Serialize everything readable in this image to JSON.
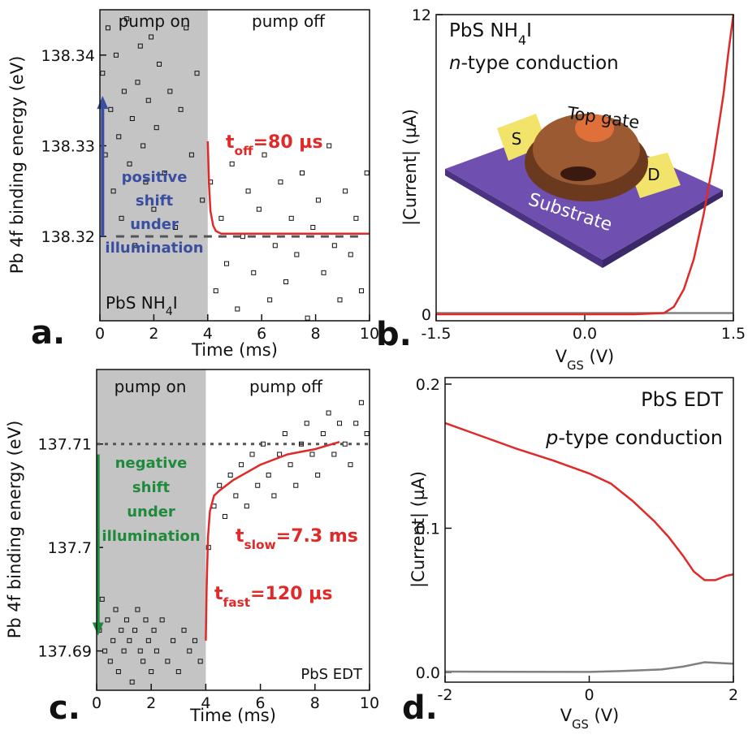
{
  "chart_data": [
    {
      "type": "scatter",
      "panel_label": "a.",
      "xlabel": [
        "Time (ms)"
      ],
      "ylabel": [
        "Pb 4f binding energy (eV)"
      ],
      "xlim": [
        0,
        10
      ],
      "ylim": [
        138.3107,
        138.345
      ],
      "xticks": [
        0,
        2,
        4,
        6,
        8,
        10
      ],
      "yticks": [
        138.32,
        138.33,
        138.34
      ],
      "shade": {
        "x": [
          0,
          4
        ],
        "color": "#c4c4c4"
      },
      "arrow": {
        "x": 0.1,
        "values": [
          138.32,
          138.3355
        ],
        "color": "#3a4ea0"
      },
      "series": [
        {
          "marker": "square",
          "color": "#111111",
          "x": [
            0.1,
            0.2,
            0.3,
            0.4,
            0.5,
            0.6,
            0.7,
            0.8,
            0.9,
            1.0,
            1.1,
            1.2,
            1.3,
            1.4,
            1.5,
            1.6,
            1.7,
            1.8,
            1.9,
            2.0,
            2.1,
            2.2,
            2.4,
            2.6,
            2.8,
            3.0,
            3.2,
            3.4,
            3.6,
            3.8,
            4.1,
            4.3,
            4.5,
            4.7,
            4.9,
            5.1,
            5.3,
            5.5,
            5.7,
            5.9,
            6.1,
            6.3,
            6.5,
            6.7,
            6.9,
            7.1,
            7.3,
            7.5,
            7.7,
            7.9,
            8.1,
            8.3,
            8.5,
            8.7,
            8.9,
            9.1,
            9.3,
            9.5,
            9.7,
            9.9
          ],
          "values": [
            138.338,
            138.329,
            138.343,
            138.334,
            138.325,
            138.34,
            138.331,
            138.322,
            138.336,
            138.344,
            138.328,
            138.333,
            138.319,
            138.337,
            138.341,
            138.33,
            138.326,
            138.335,
            138.342,
            138.323,
            138.332,
            138.339,
            138.327,
            138.336,
            138.321,
            138.334,
            138.343,
            138.329,
            138.338,
            138.324,
            138.326,
            138.314,
            138.322,
            138.317,
            138.328,
            138.312,
            138.32,
            138.325,
            138.316,
            138.323,
            138.329,
            138.313,
            138.319,
            138.326,
            138.315,
            138.322,
            138.318,
            138.327,
            138.311,
            138.321,
            138.324,
            138.316,
            138.33,
            138.319,
            138.313,
            138.325,
            138.318,
            138.322,
            138.314,
            138.327
          ]
        },
        {
          "color": "#555555",
          "dash": "10 8",
          "x": [
            0.6,
            9.8
          ],
          "values": [
            138.32,
            138.32
          ]
        },
        {
          "color": "#e02a2a",
          "x": [
            4,
            4.05,
            4.1,
            4.2,
            4.3,
            4.5,
            5,
            6,
            7,
            8,
            9,
            10
          ],
          "values": [
            138.3305,
            138.3255,
            138.3228,
            138.3212,
            138.3206,
            138.3203,
            138.3203,
            138.3203,
            138.3203,
            138.3203,
            138.3203,
            138.3203
          ]
        }
      ],
      "annotations": [
        {
          "color": "#111111",
          "lines": [
            [
              "pump on"
            ]
          ]
        },
        {
          "color": "#111111",
          "lines": [
            [
              "pump off"
            ]
          ]
        },
        {
          "color": "#e02a2a",
          "lines": [
            [
              "t",
              {
                "sub": "off"
              },
              "=80 µs"
            ]
          ]
        },
        {
          "color": "#3a4ea0",
          "lines": [
            [
              "positive"
            ],
            [
              "shift"
            ],
            [
              "under"
            ],
            [
              "illumination"
            ]
          ]
        },
        {
          "color": "#111111",
          "lines": [
            [
              "PbS NH",
              {
                "sub": "4"
              },
              "I"
            ]
          ]
        }
      ]
    },
    {
      "type": "line",
      "panel_label": "b.",
      "xlabel": [
        "V",
        {
          "sub": "GS"
        },
        " (V)"
      ],
      "ylabel": [
        "|Current| (µA)"
      ],
      "xlim": [
        -1.5,
        1.5
      ],
      "ylim": [
        -0.26,
        12
      ],
      "xticks": [
        -1.5,
        {
          "value": 0,
          "label": "0.0"
        },
        1.5
      ],
      "yticks": [
        0,
        12
      ],
      "series": [
        {
          "color": "#808080",
          "x": [
            -1.5,
            1.5
          ],
          "values": [
            0.05,
            0.05
          ]
        },
        {
          "color": "#e02a2a",
          "x": [
            -1.5,
            0.5,
            0.8,
            0.9,
            1.0,
            1.1,
            1.2,
            1.3,
            1.4,
            1.45,
            1.5
          ],
          "values": [
            0,
            0,
            0.05,
            0.3,
            1.0,
            2.2,
            4.0,
            6.2,
            8.8,
            10.5,
            12
          ]
        }
      ],
      "annotations": [
        {
          "color": "#111111",
          "lines": [
            [
              "PbS NH",
              {
                "sub": "4"
              },
              "I"
            ],
            [
              {
                "italic": "n"
              },
              "-type conduction"
            ]
          ]
        },
        {
          "color": "#111111",
          "lines": [
            [
              "Top gate"
            ]
          ]
        },
        {
          "color": "#111111",
          "lines": [
            [
              "S"
            ]
          ]
        },
        {
          "color": "#111111",
          "lines": [
            [
              "D"
            ]
          ]
        },
        {
          "color": "#ffffff",
          "lines": [
            [
              "Substrate"
            ]
          ]
        }
      ]
    },
    {
      "type": "scatter",
      "panel_label": "c.",
      "xlabel": [
        "Time (ms)"
      ],
      "ylabel": [
        "Pb 4f binding energy (eV)"
      ],
      "xlim": [
        0,
        10
      ],
      "ylim": [
        137.6862,
        137.7172
      ],
      "xticks": [
        0,
        2,
        4,
        6,
        8,
        10
      ],
      "yticks": [
        137.69,
        137.7,
        137.71
      ],
      "shade": {
        "x": [
          0,
          4
        ],
        "color": "#c4c4c4"
      },
      "arrow": {
        "x": 0.05,
        "values": [
          137.709,
          137.6915
        ],
        "color": "#1f8a3c"
      },
      "series": [
        {
          "marker": "square",
          "color": "#111111",
          "x": [
            0.1,
            0.2,
            0.3,
            0.4,
            0.5,
            0.6,
            0.7,
            0.8,
            0.9,
            1.0,
            1.1,
            1.2,
            1.3,
            1.4,
            1.5,
            1.6,
            1.7,
            1.8,
            1.9,
            2.0,
            2.1,
            2.2,
            2.4,
            2.6,
            2.8,
            3.0,
            3.2,
            3.4,
            3.6,
            3.8,
            4.1,
            4.3,
            4.5,
            4.7,
            4.9,
            5.1,
            5.3,
            5.5,
            5.7,
            5.9,
            6.1,
            6.3,
            6.5,
            6.7,
            6.9,
            7.1,
            7.3,
            7.5,
            7.7,
            7.9,
            8.1,
            8.3,
            8.5,
            8.7,
            8.9,
            9.1,
            9.3,
            9.5,
            9.7,
            9.9
          ],
          "values": [
            137.692,
            137.695,
            137.69,
            137.693,
            137.689,
            137.691,
            137.694,
            137.688,
            137.692,
            137.69,
            137.693,
            137.691,
            137.687,
            137.692,
            137.694,
            137.69,
            137.689,
            137.693,
            137.691,
            137.688,
            137.692,
            137.69,
            137.693,
            137.689,
            137.691,
            137.688,
            137.692,
            137.69,
            137.691,
            137.689,
            137.7,
            137.704,
            137.706,
            137.703,
            137.707,
            137.705,
            137.708,
            137.704,
            137.709,
            137.706,
            137.71,
            137.707,
            137.705,
            137.709,
            137.711,
            137.708,
            137.706,
            137.71,
            137.712,
            137.709,
            137.707,
            137.711,
            137.713,
            137.709,
            137.712,
            137.71,
            137.708,
            137.712,
            137.714,
            137.711
          ]
        },
        {
          "color": "#555555",
          "dash": "4 6",
          "x": [
            0,
            10
          ],
          "values": [
            137.71,
            137.71
          ]
        },
        {
          "color": "#e02a2a",
          "x": [
            4,
            4.03,
            4.08,
            4.15,
            4.3,
            4.5,
            5,
            6,
            7,
            8,
            8.9
          ],
          "values": [
            137.691,
            137.696,
            137.701,
            137.7035,
            137.705,
            137.7055,
            137.7065,
            137.708,
            137.709,
            137.7095,
            137.7102
          ]
        }
      ],
      "annotations": [
        {
          "color": "#111111",
          "lines": [
            [
              "pump on"
            ]
          ]
        },
        {
          "color": "#111111",
          "lines": [
            [
              "pump off"
            ]
          ]
        },
        {
          "color": "#1f8a3c",
          "lines": [
            [
              "negative"
            ],
            [
              "shift"
            ],
            [
              "under"
            ],
            [
              "illumination"
            ]
          ]
        },
        {
          "color": "#e02a2a",
          "lines": [
            [
              "t",
              {
                "sub": "slow"
              },
              "=7.3 ms"
            ]
          ]
        },
        {
          "color": "#e02a2a",
          "lines": [
            [
              "t",
              {
                "sub": "fast"
              },
              "=120 µs"
            ]
          ]
        },
        {
          "color": "#111111",
          "lines": [
            [
              "PbS EDT"
            ]
          ]
        }
      ]
    },
    {
      "type": "line",
      "panel_label": "d.",
      "xlabel": [
        "V",
        {
          "sub": "GS"
        },
        " (V)"
      ],
      "ylabel": [
        "|Current| (µA)"
      ],
      "xlim": [
        -2,
        2
      ],
      "ylim": [
        -0.0068,
        0.2045
      ],
      "xticks": [
        -2,
        0,
        2
      ],
      "yticks": [
        {
          "value": 0,
          "label": "0.0"
        },
        0.1,
        0.2
      ],
      "series": [
        {
          "color": "#808080",
          "x": [
            -2,
            0,
            0.5,
            1,
            1.3,
            1.6,
            1.8,
            2
          ],
          "values": [
            0.0005,
            0.0003,
            0.001,
            0.002,
            0.004,
            0.007,
            0.0065,
            0.006
          ]
        },
        {
          "color": "#e02a2a",
          "x": [
            -2,
            -1.5,
            -1,
            -0.5,
            0,
            0.3,
            0.6,
            0.9,
            1.1,
            1.3,
            1.45,
            1.6,
            1.75,
            1.9,
            2
          ],
          "values": [
            0.173,
            0.164,
            0.155,
            0.147,
            0.138,
            0.131,
            0.119,
            0.105,
            0.094,
            0.081,
            0.07,
            0.064,
            0.064,
            0.067,
            0.068
          ]
        }
      ],
      "annotations": [
        {
          "color": "#111111",
          "lines": [
            [
              "PbS EDT"
            ]
          ]
        },
        {
          "color": "#111111",
          "lines": [
            [
              {
                "italic": "p"
              },
              "-type conduction"
            ]
          ]
        }
      ]
    }
  ]
}
